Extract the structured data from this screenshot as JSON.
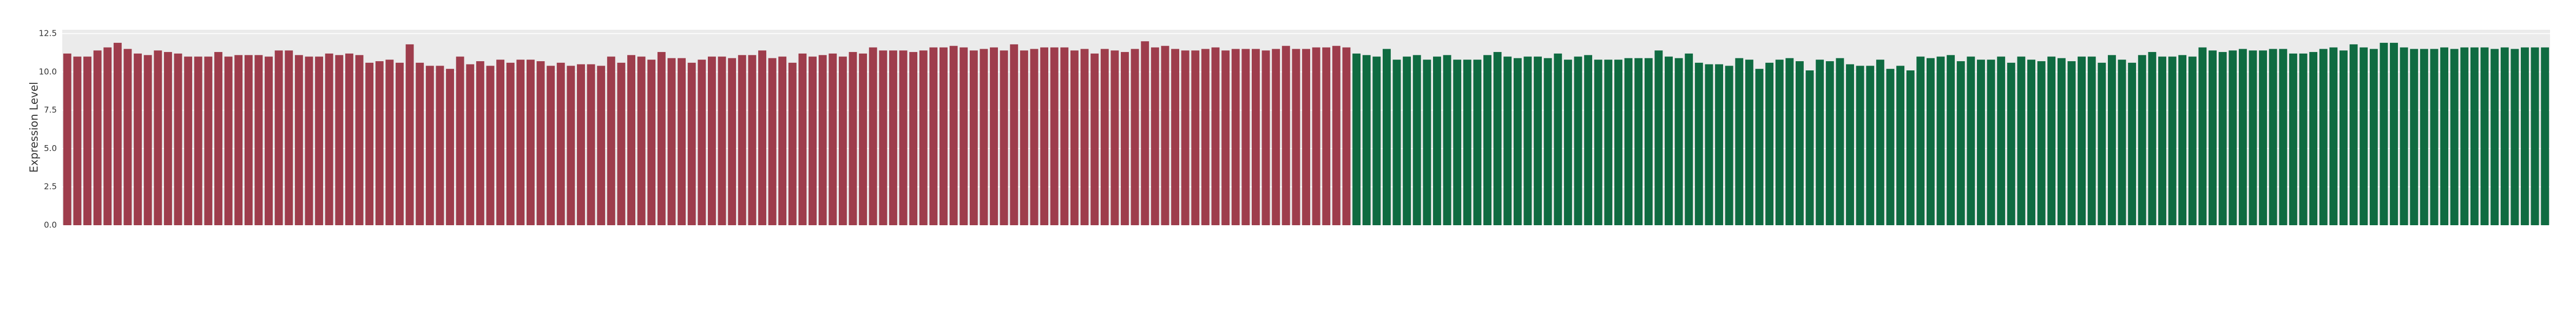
{
  "chart_data": {
    "type": "bar",
    "y_label": "Expression Level",
    "ylim": [
      0,
      12.75
    ],
    "yticks": [
      {
        "value": 0,
        "label": "0.0"
      },
      {
        "value": 2.5,
        "label": "2.5"
      },
      {
        "value": 5,
        "label": "5.0"
      },
      {
        "value": 7.5,
        "label": "7.5"
      },
      {
        "value": 10,
        "label": "10.0"
      },
      {
        "value": 12.5,
        "label": "12.5"
      }
    ],
    "grid": true,
    "background": "#ebebeb",
    "series": [
      {
        "color": "#9e3d4c",
        "values": [
          11.2,
          11.0,
          11.0,
          11.4,
          11.6,
          11.9,
          11.5,
          11.2,
          11.1,
          11.4,
          11.3,
          11.2,
          11.0,
          11.0,
          11.0,
          11.3,
          11.0,
          11.1,
          11.1,
          11.1,
          11.0,
          11.4,
          11.4,
          11.1,
          11.0,
          11.0,
          11.2,
          11.1,
          11.2,
          11.1,
          10.6,
          10.7,
          10.8,
          10.6,
          11.8,
          10.6,
          10.4,
          10.4,
          10.2,
          11.0,
          10.5,
          10.7,
          10.4,
          10.8,
          10.6,
          10.8,
          10.8,
          10.7,
          10.4,
          10.6,
          10.4,
          10.5,
          10.5,
          10.4,
          11.0,
          10.6,
          11.1,
          11.0,
          10.8,
          11.3,
          10.9,
          10.9,
          10.6,
          10.8,
          11.0,
          11.0,
          10.9,
          11.1,
          11.1,
          11.4,
          10.9,
          11.0,
          10.6,
          11.2,
          11.0,
          11.1,
          11.2,
          11.0,
          11.3,
          11.2,
          11.6,
          11.4,
          11.4,
          11.4,
          11.3,
          11.4,
          11.6,
          11.6,
          11.7,
          11.6,
          11.4,
          11.5,
          11.6,
          11.4,
          11.8,
          11.4,
          11.5,
          11.6,
          11.6,
          11.6,
          11.4,
          11.5,
          11.2,
          11.5,
          11.4,
          11.3,
          11.5,
          12.0,
          11.6,
          11.7,
          11.5,
          11.4,
          11.4,
          11.5,
          11.6,
          11.4,
          11.5,
          11.5,
          11.5,
          11.4,
          11.5,
          11.7,
          11.5,
          11.5,
          11.6,
          11.6,
          11.7,
          11.6,
          null,
          null,
          null,
          null,
          null,
          null,
          null,
          null,
          null,
          null,
          null,
          null,
          null,
          null,
          null,
          null,
          null,
          null,
          null,
          null,
          null,
          null,
          null,
          null,
          null,
          null,
          null,
          null,
          null,
          null,
          null,
          null,
          null,
          null,
          null,
          null,
          null,
          null,
          null,
          null,
          null,
          null,
          null,
          null,
          null,
          null,
          null,
          null,
          null,
          null,
          null,
          null,
          null,
          null,
          null,
          null,
          null,
          null,
          null,
          null,
          null,
          null,
          null,
          null,
          null,
          null,
          null,
          null,
          null,
          null,
          null,
          null,
          null,
          null,
          null,
          null,
          null,
          null,
          null,
          null,
          null,
          null,
          null,
          null,
          null,
          null,
          null,
          null,
          null,
          null,
          null,
          null,
          null,
          null,
          null,
          null,
          null,
          null,
          null,
          null,
          null,
          null,
          null,
          null,
          null,
          null,
          null,
          null,
          null,
          null,
          null,
          null,
          null,
          null,
          null,
          null,
          null,
          null,
          null
        ]
      },
      {
        "color": "#0f6b41",
        "values": [
          null,
          null,
          null,
          null,
          null,
          null,
          null,
          null,
          null,
          null,
          null,
          null,
          null,
          null,
          null,
          null,
          null,
          null,
          null,
          null,
          null,
          null,
          null,
          null,
          null,
          null,
          null,
          null,
          null,
          null,
          null,
          null,
          null,
          null,
          null,
          null,
          null,
          null,
          null,
          null,
          null,
          null,
          null,
          null,
          null,
          null,
          null,
          null,
          null,
          null,
          null,
          null,
          null,
          null,
          null,
          null,
          null,
          null,
          null,
          null,
          null,
          null,
          null,
          null,
          null,
          null,
          null,
          null,
          null,
          null,
          null,
          null,
          null,
          null,
          null,
          null,
          null,
          null,
          null,
          null,
          null,
          null,
          null,
          null,
          null,
          null,
          null,
          null,
          null,
          null,
          null,
          null,
          null,
          null,
          null,
          null,
          null,
          null,
          null,
          null,
          null,
          null,
          null,
          null,
          null,
          null,
          null,
          null,
          null,
          null,
          null,
          null,
          null,
          null,
          null,
          null,
          null,
          null,
          null,
          null,
          null,
          null,
          null,
          null,
          null,
          null,
          null,
          null,
          11.2,
          11.1,
          11.0,
          11.5,
          10.8,
          11.0,
          11.1,
          10.8,
          11.0,
          11.1,
          10.8,
          10.8,
          10.8,
          11.1,
          11.3,
          11.0,
          10.9,
          11.0,
          11.0,
          10.9,
          11.2,
          10.8,
          11.0,
          11.1,
          10.8,
          10.8,
          10.8,
          10.9,
          10.9,
          10.9,
          11.4,
          11.0,
          10.9,
          11.2,
          10.6,
          10.5,
          10.5,
          10.4,
          10.9,
          10.8,
          10.2,
          10.6,
          10.8,
          10.9,
          10.7,
          10.1,
          10.8,
          10.7,
          10.9,
          10.5,
          10.4,
          10.4,
          10.8,
          10.2,
          10.4,
          10.1,
          11.0,
          10.9,
          11.0,
          11.1,
          10.7,
          11.0,
          10.8,
          10.8,
          11.0,
          10.6,
          11.0,
          10.8,
          10.7,
          11.0,
          10.9,
          10.7,
          11.0,
          11.0,
          10.6,
          11.1,
          10.8,
          10.6,
          11.1,
          11.3,
          11.0,
          11.0,
          11.1,
          11.0,
          11.6,
          11.4,
          11.3,
          11.4,
          11.5,
          11.4,
          11.4,
          11.5,
          11.5,
          11.2,
          11.2,
          11.3,
          11.5,
          11.6,
          11.4,
          11.8,
          11.6,
          11.5,
          11.9,
          11.9,
          11.6,
          11.5,
          11.5,
          11.5,
          11.6,
          11.5,
          11.6,
          11.6,
          11.6,
          11.5,
          11.6,
          11.5,
          11.6,
          11.6,
          11.6
        ]
      }
    ]
  }
}
